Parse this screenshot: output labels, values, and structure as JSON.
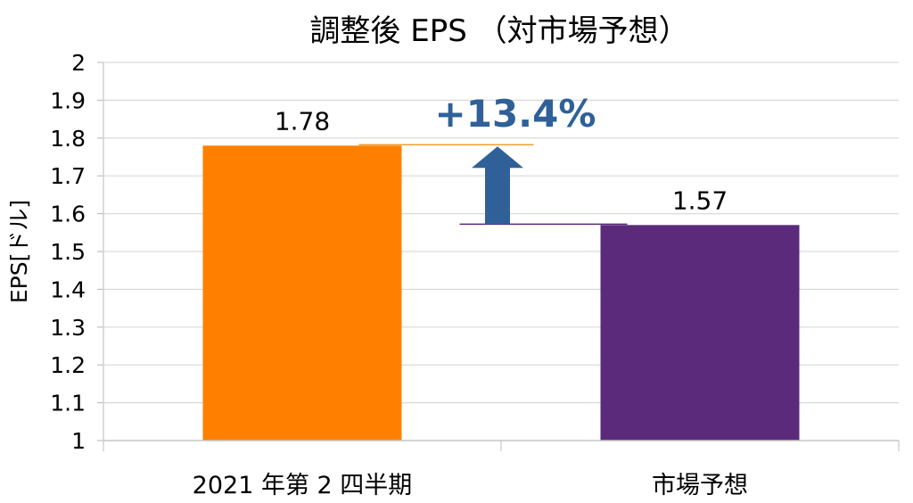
{
  "chart_data": {
    "type": "bar",
    "title": "調整後 EPS （対市場予想）",
    "xlabel": "",
    "ylabel": "EPS[ドル]",
    "ylim": [
      1,
      2
    ],
    "yticks": [
      "1",
      "1.1",
      "1.2",
      "1.3",
      "1.4",
      "1.5",
      "1.6",
      "1.7",
      "1.8",
      "1.9",
      "2"
    ],
    "categories": [
      "2021 年第 2 四半期",
      "市場予想"
    ],
    "values": [
      1.78,
      1.57
    ],
    "data_labels": [
      "1.78",
      "1.57"
    ],
    "bar_colors": [
      "#FF8000",
      "#5B2A7A"
    ],
    "grid": true,
    "legend": "none",
    "annotation": {
      "text": "+13.4%",
      "color": "#2F6198"
    }
  }
}
